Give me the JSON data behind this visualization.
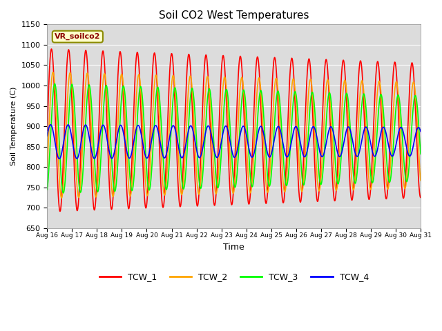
{
  "title": "Soil CO2 West Temperatures",
  "xlabel": "Time",
  "ylabel": "Soil Temperature (C)",
  "ylim": [
    650,
    1150
  ],
  "xlim_days": [
    0,
    15
  ],
  "annotation": "VR_soilco2",
  "background_color": "#dcdcdc",
  "grid_color": "#ffffff",
  "series": {
    "TCW_1": {
      "color": "#ff0000",
      "lw": 1.2
    },
    "TCW_2": {
      "color": "#ffa500",
      "lw": 1.2
    },
    "TCW_3": {
      "color": "#00ff00",
      "lw": 1.2
    },
    "TCW_4": {
      "color": "#0000ff",
      "lw": 1.2
    }
  },
  "xtick_labels": [
    "Aug 16",
    "Aug 17",
    "Aug 18",
    "Aug 19",
    "Aug 20",
    "Aug 21",
    "Aug 22",
    "Aug 23",
    "Aug 24",
    "Aug 25",
    "Aug 26",
    "Aug 27",
    "Aug 28",
    "Aug 29",
    "Aug 30",
    "Aug 31"
  ],
  "legend": [
    {
      "label": "TCW_1",
      "color": "#ff0000"
    },
    {
      "label": "TCW_2",
      "color": "#ffa500"
    },
    {
      "label": "TCW_3",
      "color": "#00ff00"
    },
    {
      "label": "TCW_4",
      "color": "#0000ff"
    }
  ]
}
